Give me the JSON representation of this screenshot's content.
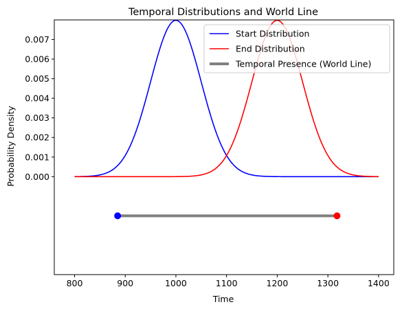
{
  "chart_data": {
    "type": "line",
    "title": "Temporal Distributions and World Line",
    "xlabel": "Time",
    "ylabel": "Probability Density",
    "xlim": [
      760,
      1430
    ],
    "ylim": [
      -0.005,
      0.008
    ],
    "x_ticks": [
      800,
      900,
      1000,
      1100,
      1200,
      1300,
      1400
    ],
    "x_tick_labels": [
      "800",
      "900",
      "1000",
      "1100",
      "1200",
      "1300",
      "1400"
    ],
    "y_ticks": [
      0.0,
      0.001,
      0.002,
      0.003,
      0.004,
      0.005,
      0.006,
      0.007
    ],
    "y_tick_labels": [
      "0.000",
      "0.001",
      "0.002",
      "0.003",
      "0.004",
      "0.005",
      "0.006",
      "0.007"
    ],
    "grid": false,
    "legend_position": "top-right",
    "series": [
      {
        "name": "Start Distribution",
        "kind": "gaussian",
        "mean": 1000,
        "std": 50,
        "x_range": [
          800,
          1400
        ],
        "color": "#0000ff"
      },
      {
        "name": "End Distribution",
        "kind": "gaussian",
        "mean": 1200,
        "std": 50,
        "x_range": [
          800,
          1400
        ],
        "color": "#ff0000"
      },
      {
        "name": "Temporal Presence (World Line)",
        "kind": "segment",
        "x": [
          885,
          1318
        ],
        "y": [
          -0.002,
          -0.002
        ],
        "color": "#808080"
      }
    ],
    "markers": [
      {
        "x": 885,
        "y": -0.002,
        "color": "#0000ff"
      },
      {
        "x": 1318,
        "y": -0.002,
        "color": "#ff0000"
      }
    ]
  }
}
